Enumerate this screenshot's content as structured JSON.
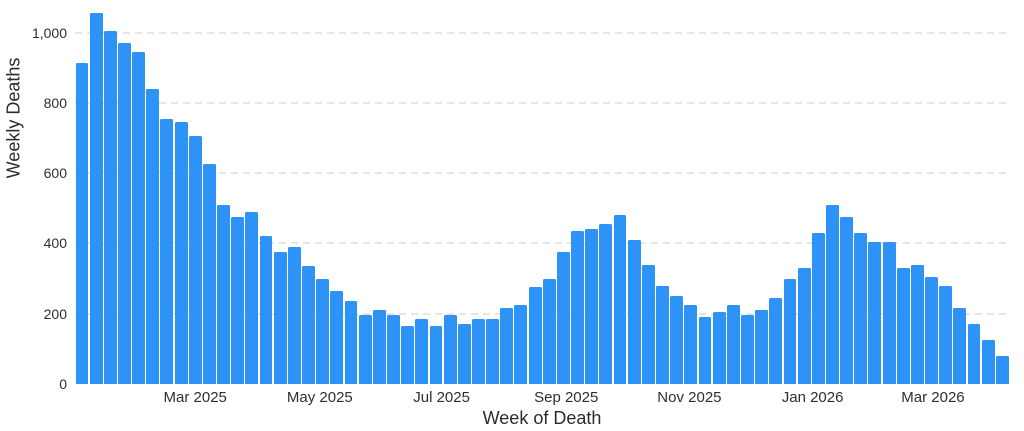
{
  "chart_data": {
    "type": "bar",
    "title": "",
    "xlabel": "Week of Death",
    "ylabel": "Weekly Deaths",
    "x_tick_labels": [
      "Mar 2025",
      "May 2025",
      "Jul 2025",
      "Sep 2025",
      "Nov 2025",
      "Jan 2026",
      "Mar 2026"
    ],
    "x_tick_bar_index": [
      8,
      16.8,
      25.4,
      34.2,
      42.9,
      51.6,
      60.1
    ],
    "y_ticks": [
      0,
      200,
      400,
      600,
      800,
      1000
    ],
    "y_tick_labels": [
      "0",
      "200",
      "400",
      "600",
      "800",
      "1,000"
    ],
    "ylim": [
      0,
      1100
    ],
    "grid": "horizontal dashed gridlines at 200, 400, 600, 800, 1000",
    "legend_position": "none",
    "n_bars": 66,
    "values": [
      915,
      1055,
      1005,
      970,
      945,
      840,
      755,
      745,
      705,
      625,
      510,
      475,
      490,
      420,
      375,
      390,
      335,
      300,
      265,
      235,
      195,
      210,
      195,
      165,
      185,
      165,
      195,
      170,
      185,
      185,
      215,
      225,
      275,
      300,
      375,
      435,
      440,
      455,
      480,
      410,
      340,
      280,
      250,
      225,
      190,
      205,
      225,
      195,
      210,
      245,
      300,
      330,
      430,
      510,
      475,
      430,
      405,
      405,
      330,
      340,
      305,
      280,
      215,
      170,
      125,
      80
    ]
  },
  "colors": {
    "bar": "#2e93f6",
    "grid": "#e7e5e5",
    "text": "#2f2f2f",
    "background": "#ffffff"
  }
}
